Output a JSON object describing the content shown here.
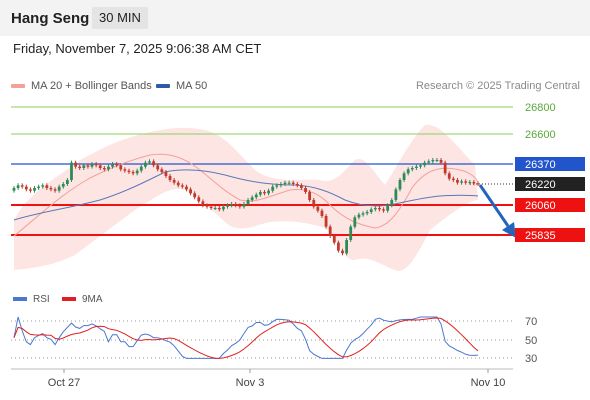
{
  "header": {
    "title": "Hang Seng",
    "timeframe": "30 MIN"
  },
  "timestamp": "Friday, November 7, 2025 9:06:38 AM CET",
  "legend": {
    "items": [
      {
        "label": "MA 20 + Bollinger Bands",
        "color": "#f08a80"
      },
      {
        "label": "MA 50",
        "color": "#2e5aa8"
      }
    ],
    "research": "Research © 2025 Trading Central"
  },
  "price_levels": [
    {
      "value": "26800",
      "type": "green"
    },
    {
      "value": "26600",
      "type": "green"
    },
    {
      "value": "26370",
      "type": "resistance"
    },
    {
      "value": "26220",
      "type": "last"
    },
    {
      "value": "26060",
      "type": "support"
    },
    {
      "value": "25835",
      "type": "support"
    }
  ],
  "rsi": {
    "legend": [
      {
        "label": "RSI",
        "color": "#4a78d0"
      },
      {
        "label": "9MA",
        "color": "#e02020"
      }
    ],
    "levels": [
      "70",
      "50",
      "30"
    ]
  },
  "xaxis": {
    "labels": [
      "Oct 27",
      "Nov 3",
      "Nov 10"
    ]
  },
  "colors": {
    "up": "#2e8b57",
    "down": "#c0392b",
    "resistance": "#2255cc",
    "support": "#ee1111",
    "green": "#8fce5a",
    "arrow": "#2266bb"
  }
}
